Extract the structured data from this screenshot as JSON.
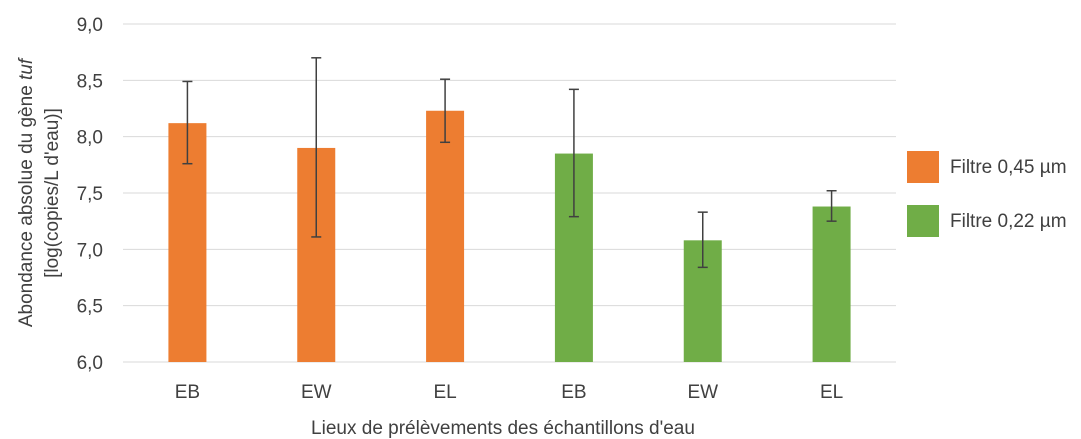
{
  "chart_data": {
    "type": "bar",
    "categories": [
      "EB",
      "EW",
      "EL",
      "EB",
      "EW",
      "EL"
    ],
    "values": [
      8.12,
      7.9,
      8.23,
      7.85,
      7.08,
      7.38
    ],
    "error_low": [
      7.76,
      7.11,
      7.95,
      7.29,
      6.84,
      7.25
    ],
    "error_high": [
      8.49,
      8.7,
      8.51,
      8.42,
      7.33,
      7.52
    ],
    "bar_series": [
      0,
      0,
      0,
      1,
      1,
      1
    ],
    "series": [
      {
        "name": "Filtre 0,45 µm",
        "color": "#ed7d31"
      },
      {
        "name": "Filtre 0,22 µm",
        "color": "#70ad47"
      }
    ],
    "ylim": [
      6.0,
      9.0
    ],
    "yticks": [
      "6,0",
      "6,5",
      "7,0",
      "7,5",
      "8,0",
      "8,5",
      "9,0"
    ],
    "ytick_values": [
      6.0,
      6.5,
      7.0,
      7.5,
      8.0,
      8.5,
      9.0
    ],
    "ylabel_line1_prefix": "Abondance absolue du gène ",
    "ylabel_line1_italic": "tuf",
    "ylabel_line2": "[log(copies/L d'eau)]",
    "xlabel": "Lieux de prélèvements des échantillons d'eau",
    "grid": true,
    "legend_position": "right"
  }
}
